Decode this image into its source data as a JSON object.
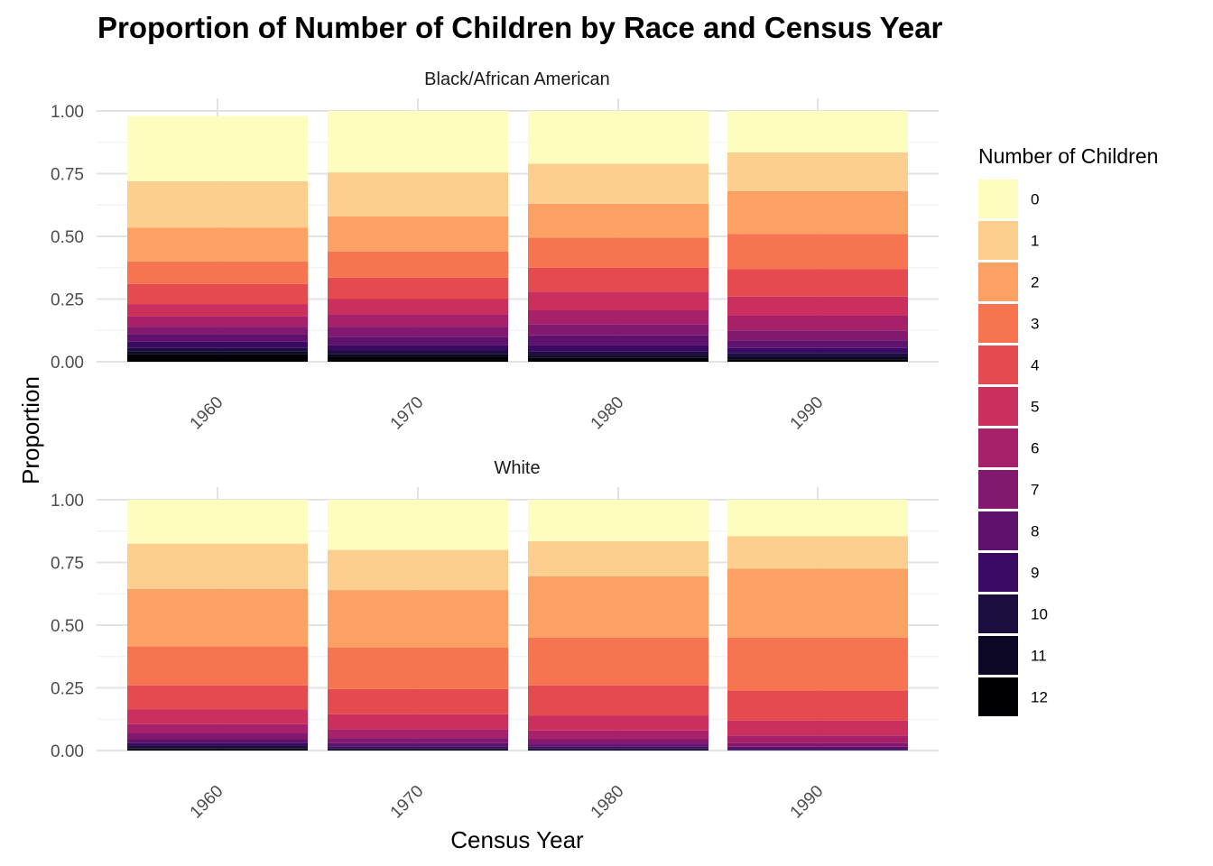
{
  "chart_data": {
    "type": "bar",
    "stacked": true,
    "title": "Proportion of Number of Children by Race and Census Year",
    "xlabel": "Census Year",
    "ylabel": "Proportion",
    "ylim": [
      0,
      1
    ],
    "yticks": [
      "0.00",
      "0.25",
      "0.50",
      "0.75",
      "1.00"
    ],
    "categories": [
      "1960",
      "1970",
      "1980",
      "1990"
    ],
    "legend": {
      "title": "Number of Children",
      "placement": "right",
      "entries": [
        {
          "label": "0",
          "color": "#FCFDBF"
        },
        {
          "label": "1",
          "color": "#FDCF8E"
        },
        {
          "label": "2",
          "color": "#FCA063"
        },
        {
          "label": "3",
          "color": "#F6744F"
        },
        {
          "label": "4",
          "color": "#E54A4E"
        },
        {
          "label": "5",
          "color": "#CB2F5E"
        },
        {
          "label": "6",
          "color": "#A6206A"
        },
        {
          "label": "7",
          "color": "#82196E"
        },
        {
          "label": "8",
          "color": "#5E126E"
        },
        {
          "label": "9",
          "color": "#3A0963"
        },
        {
          "label": "10",
          "color": "#1C0E3E"
        },
        {
          "label": "11",
          "color": "#0B0724"
        },
        {
          "label": "12",
          "color": "#000004"
        }
      ]
    },
    "panels": [
      {
        "strip": "Black/African American",
        "bars": [
          {
            "year": "1960",
            "proportions": [
              0.26,
              0.185,
              0.135,
              0.09,
              0.08,
              0.05,
              0.04,
              0.03,
              0.03,
              0.025,
              0.015,
              0.01,
              0.03
            ]
          },
          {
            "year": "1970",
            "proportions": [
              0.245,
              0.175,
              0.14,
              0.105,
              0.085,
              0.06,
              0.05,
              0.04,
              0.035,
              0.02,
              0.015,
              0.01,
              0.02
            ]
          },
          {
            "year": "1980",
            "proportions": [
              0.21,
              0.16,
              0.135,
              0.12,
              0.095,
              0.075,
              0.055,
              0.045,
              0.04,
              0.025,
              0.015,
              0.01,
              0.015
            ]
          },
          {
            "year": "1990",
            "proportions": [
              0.165,
              0.155,
              0.17,
              0.14,
              0.11,
              0.075,
              0.06,
              0.04,
              0.03,
              0.02,
              0.015,
              0.01,
              0.01
            ]
          }
        ]
      },
      {
        "strip": "White",
        "bars": [
          {
            "year": "1960",
            "proportions": [
              0.175,
              0.18,
              0.23,
              0.155,
              0.095,
              0.06,
              0.035,
              0.025,
              0.015,
              0.01,
              0.01,
              0.005,
              0.005
            ]
          },
          {
            "year": "1970",
            "proportions": [
              0.2,
              0.16,
              0.23,
              0.165,
              0.1,
              0.06,
              0.035,
              0.02,
              0.013,
              0.007,
              0.005,
              0.003,
              0.002
            ]
          },
          {
            "year": "1980",
            "proportions": [
              0.165,
              0.14,
              0.245,
              0.19,
              0.12,
              0.06,
              0.035,
              0.02,
              0.01,
              0.007,
              0.004,
              0.002,
              0.002
            ]
          },
          {
            "year": "1990",
            "proportions": [
              0.145,
              0.13,
              0.275,
              0.21,
              0.12,
              0.06,
              0.03,
              0.015,
              0.008,
              0.004,
              0.002,
              0.001,
              0.0
            ]
          }
        ]
      }
    ]
  }
}
